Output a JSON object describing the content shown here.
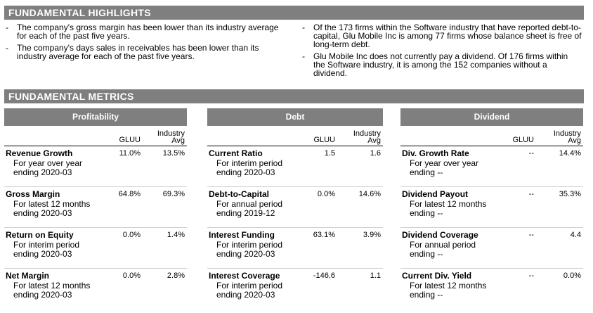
{
  "highlights": {
    "title": "FUNDAMENTAL HIGHLIGHTS",
    "left": [
      "The company's gross margin has been lower than its industry average for each of the past five years.",
      "The company's days sales in receivables has been lower than its industry average for each of the past five years."
    ],
    "right": [
      "Of the 173 firms within the Software industry that have reported debt-to-capital, Glu Mobile Inc is among 77 firms whose balance sheet is free of long-term debt.",
      "Glu Mobile Inc does not currently pay a dividend.  Of 176 firms within the Software industry, it is among the 152 companies without a dividend."
    ]
  },
  "metrics_title": "FUNDAMENTAL METRICS",
  "columns": {
    "ticker": "GLUU",
    "industry": "Industry",
    "avg": "Avg"
  },
  "panels": {
    "profitability": {
      "title": "Profitability",
      "rows": [
        {
          "name": "Revenue Growth",
          "desc1": "For year over year",
          "desc2": "ending 2020-03",
          "gluu": "11.0%",
          "ind": "13.5%"
        },
        {
          "name": "Gross Margin",
          "desc1": "For latest 12 months",
          "desc2": "ending 2020-03",
          "gluu": "64.8%",
          "ind": "69.3%"
        },
        {
          "name": "Return on Equity",
          "desc1": "For interim period",
          "desc2": "ending 2020-03",
          "gluu": "0.0%",
          "ind": "1.4%"
        },
        {
          "name": "Net Margin",
          "desc1": "For latest 12 months",
          "desc2": "ending 2020-03",
          "gluu": "0.0%",
          "ind": "2.8%"
        }
      ]
    },
    "debt": {
      "title": "Debt",
      "rows": [
        {
          "name": "Current Ratio",
          "desc1": "For interim period",
          "desc2": "ending 2020-03",
          "gluu": "1.5",
          "ind": "1.6"
        },
        {
          "name": "Debt-to-Capital",
          "desc1": "For annual period",
          "desc2": "ending 2019-12",
          "gluu": "0.0%",
          "ind": "14.6%"
        },
        {
          "name": "Interest Funding",
          "desc1": "For interim period",
          "desc2": "ending 2020-03",
          "gluu": "63.1%",
          "ind": "3.9%"
        },
        {
          "name": "Interest Coverage",
          "desc1": "For interim period",
          "desc2": "ending 2020-03",
          "gluu": "-146.6",
          "ind": "1.1"
        }
      ]
    },
    "dividend": {
      "title": "Dividend",
      "rows": [
        {
          "name": "Div. Growth Rate",
          "desc1": "For year over year",
          "desc2": "ending --",
          "gluu": "--",
          "ind": "14.4%"
        },
        {
          "name": "Dividend Payout",
          "desc1": "For latest 12 months",
          "desc2": "ending --",
          "gluu": "--",
          "ind": "35.3%"
        },
        {
          "name": "Dividend Coverage",
          "desc1": "For annual period",
          "desc2": "ending --",
          "gluu": "--",
          "ind": "4.4"
        },
        {
          "name": "Current Div. Yield",
          "desc1": "For latest 12 months",
          "desc2": "ending --",
          "gluu": "--",
          "ind": "0.0%"
        }
      ]
    }
  }
}
